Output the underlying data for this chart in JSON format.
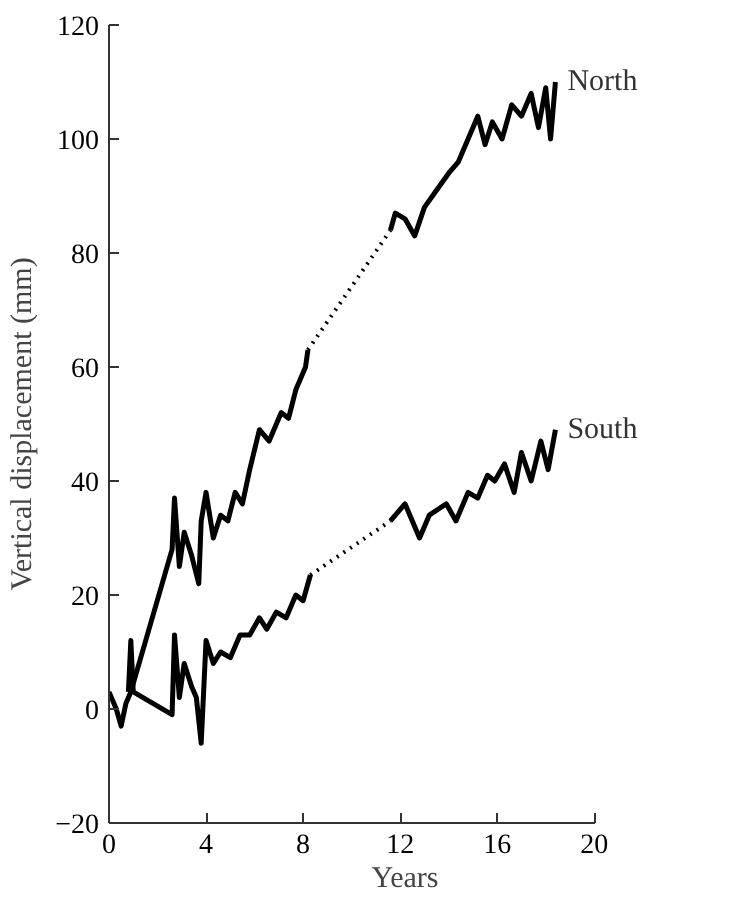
{
  "chart_data": {
    "type": "line",
    "xlabel": "Years",
    "ylabel": "Vertical displacement (mm)",
    "xlim": [
      0,
      20
    ],
    "xticks": [
      0,
      4,
      8,
      12,
      16,
      20
    ],
    "ylim": [
      -20,
      120
    ],
    "yticks": [
      -20,
      0,
      20,
      40,
      60,
      80,
      100,
      120
    ],
    "grid": false,
    "legend": false,
    "marker": "none",
    "series": [
      {
        "color": "#000000",
        "line_style": "solid",
        "x": [
          0,
          0.3,
          0.5,
          0.7,
          0.9,
          2.6,
          2.7,
          2.9,
          3.1,
          3.4,
          3.7,
          3.8,
          4.0,
          4.3,
          4.6,
          4.9,
          5.2,
          5.5,
          5.8,
          6.2,
          6.6,
          7.1,
          7.4,
          7.7,
          8.1,
          8.2
        ],
        "values": [
          3,
          0,
          -3,
          1,
          3,
          28,
          37,
          25,
          31,
          27,
          22,
          33,
          38,
          30,
          34,
          33,
          38,
          36,
          42,
          49,
          47,
          52,
          51,
          56,
          60,
          63
        ]
      },
      {
        "color": "#000000",
        "line_style": "dotted",
        "x": [
          8.2,
          11.6
        ],
        "values": [
          63,
          84
        ]
      },
      {
        "name": "North",
        "color": "#000000",
        "line_style": "solid",
        "x": [
          11.6,
          11.8,
          12.2,
          12.6,
          13.0,
          13.5,
          14.0,
          14.4,
          14.8,
          15.2,
          15.5,
          15.8,
          16.2,
          16.6,
          17.0,
          17.4,
          17.7,
          18.0,
          18.2,
          18.4
        ],
        "values": [
          84,
          87,
          86,
          83,
          88,
          91,
          94,
          96,
          100,
          104,
          99,
          103,
          100,
          106,
          104,
          108,
          102,
          109,
          100,
          110
        ]
      },
      {
        "color": "#000000",
        "line_style": "solid",
        "x": [
          0.8,
          0.9,
          1.0,
          2.6,
          2.7,
          2.9,
          3.1,
          3.4,
          3.6,
          3.8,
          4.0,
          4.3,
          4.6,
          5.0,
          5.4,
          5.8,
          6.2,
          6.5,
          6.9,
          7.3,
          7.7,
          8.0,
          8.3
        ],
        "values": [
          3,
          12,
          3,
          -1,
          13,
          2,
          8,
          4,
          2,
          -6,
          12,
          8,
          10,
          9,
          13,
          13,
          16,
          14,
          17,
          16,
          20,
          19,
          23.5
        ]
      },
      {
        "color": "#000000",
        "line_style": "dotted",
        "x": [
          8.3,
          11.6
        ],
        "values": [
          23.5,
          33
        ]
      },
      {
        "name": "South",
        "color": "#000000",
        "line_style": "solid",
        "x": [
          11.6,
          12.2,
          12.8,
          13.2,
          13.9,
          14.3,
          14.8,
          15.2,
          15.6,
          15.9,
          16.3,
          16.7,
          17.0,
          17.4,
          17.8,
          18.1,
          18.4
        ],
        "values": [
          33,
          36,
          30,
          34,
          36,
          33,
          38,
          37,
          41,
          40,
          43,
          38,
          45,
          40,
          47,
          42,
          49
        ]
      }
    ]
  }
}
